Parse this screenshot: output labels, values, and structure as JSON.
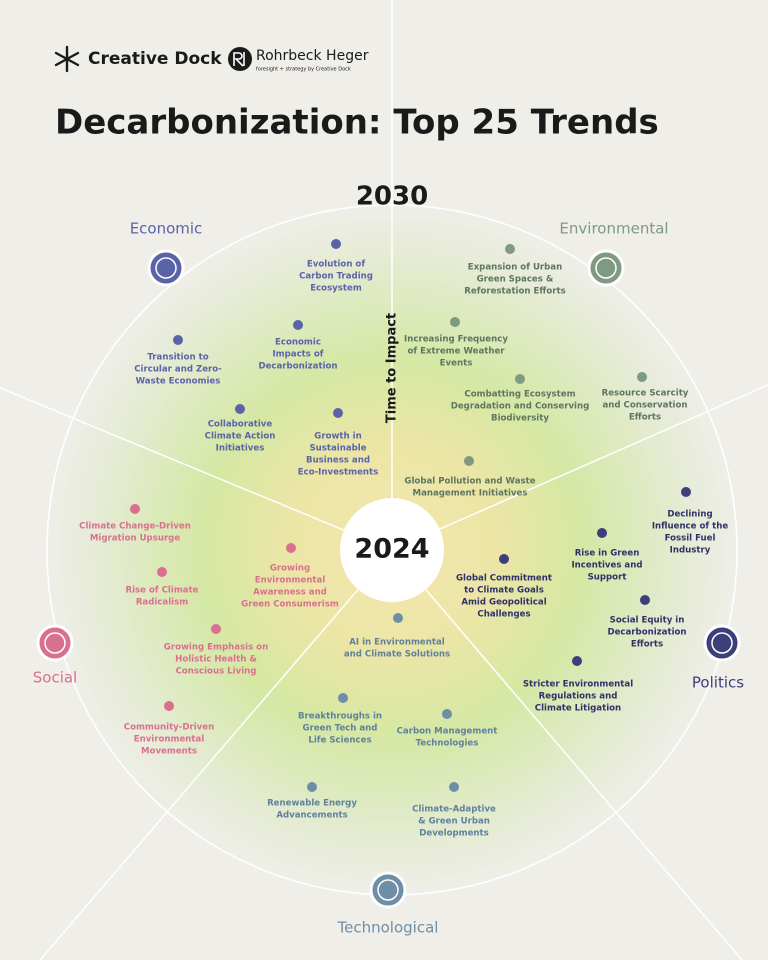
{
  "header": {
    "brand_1": "Creative Dock",
    "brand_2": "Rohrbeck Heger",
    "brand_2_tagline": "foresight + strategy by Creative Dock"
  },
  "title": "Decarbonization: Top 25 Trends",
  "axis": {
    "outer_label": "2030",
    "center_label": "2024",
    "axis_title": "Time to Impact"
  },
  "sectors": [
    {
      "name": "Economic",
      "trends": [
        {
          "lines": [
            "Evolution of",
            "Carbon Trading",
            "Ecosystem"
          ]
        },
        {
          "lines": [
            "Economic",
            "Impacts of",
            "Decarbonization"
          ]
        },
        {
          "lines": [
            "Transition to",
            "Circular and Zero-",
            "Waste Economies"
          ]
        },
        {
          "lines": [
            "Collaborative",
            "Climate Action",
            "Initiatives"
          ]
        },
        {
          "lines": [
            "Growth in",
            "Sustainable",
            "Business and",
            "Eco-Investments"
          ]
        }
      ]
    },
    {
      "name": "Environmental",
      "trends": [
        {
          "lines": [
            "Expansion of Urban",
            "Green Spaces &",
            "Reforestation Efforts"
          ]
        },
        {
          "lines": [
            "Increasing Frequency",
            "of Extreme Weather",
            "Events"
          ]
        },
        {
          "lines": [
            "Combatting Ecosystem",
            "Degradation and Conserving",
            "Biodiversity"
          ]
        },
        {
          "lines": [
            "Resource Scarcity",
            "and Conservation",
            "Efforts"
          ]
        },
        {
          "lines": [
            "Global Pollution and Waste",
            "Management Initiatives"
          ]
        }
      ]
    },
    {
      "name": "Politics",
      "trends": [
        {
          "lines": [
            "Declining",
            "Influence of the",
            "Fossil Fuel",
            "Industry"
          ]
        },
        {
          "lines": [
            "Rise in Green",
            "Incentives and",
            "Support"
          ]
        },
        {
          "lines": [
            "Global Commitment",
            "to Climate Goals",
            "Amid Geopolitical",
            "Challenges"
          ]
        },
        {
          "lines": [
            "Social Equity in",
            "Decarbonization",
            "Efforts"
          ]
        },
        {
          "lines": [
            "Stricter Environmental",
            "Regulations and",
            "Climate Litigation"
          ]
        }
      ]
    },
    {
      "name": "Social",
      "trends": [
        {
          "lines": [
            "Climate Change-Driven",
            "Migration Upsurge"
          ]
        },
        {
          "lines": [
            "Growing",
            "Environmental",
            "Awareness and",
            "Green Consumerism"
          ]
        },
        {
          "lines": [
            "Rise of Climate",
            "Radicalism"
          ]
        },
        {
          "lines": [
            "Growing Emphasis on",
            "Holistic Health &",
            "Conscious Living"
          ]
        },
        {
          "lines": [
            "Community-Driven",
            "Environmental",
            "Movements"
          ]
        }
      ]
    },
    {
      "name": "Technological",
      "trends": [
        {
          "lines": [
            "AI in Environmental",
            "and Climate Solutions"
          ]
        },
        {
          "lines": [
            "Breakthroughs in",
            "Green Tech and",
            "Life Sciences"
          ]
        },
        {
          "lines": [
            "Carbon Management",
            "Technologies"
          ]
        },
        {
          "lines": [
            "Renewable Energy",
            "Advancements"
          ]
        },
        {
          "lines": [
            "Climate-Adaptive",
            "& Green Urban",
            "Developments"
          ]
        }
      ]
    }
  ]
}
